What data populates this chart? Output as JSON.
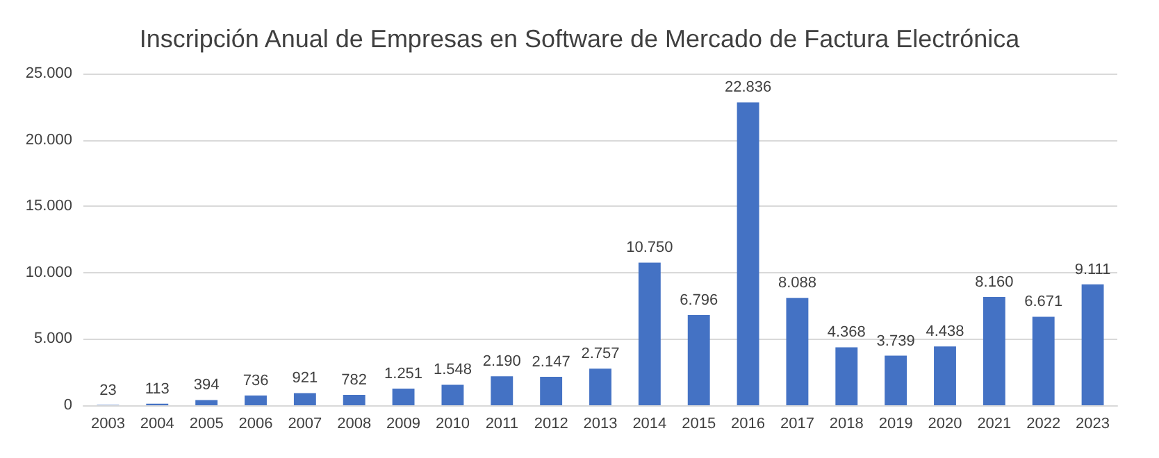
{
  "chart_data": {
    "type": "bar",
    "title": "Inscripción Anual de Empresas en Software de Mercado de Factura Electrónica",
    "categories": [
      "2003",
      "2004",
      "2005",
      "2006",
      "2007",
      "2008",
      "2009",
      "2010",
      "2011",
      "2012",
      "2013",
      "2014",
      "2015",
      "2016",
      "2017",
      "2018",
      "2019",
      "2020",
      "2021",
      "2022",
      "2023"
    ],
    "values": [
      23,
      113,
      394,
      736,
      921,
      782,
      1251,
      1548,
      2190,
      2147,
      2757,
      10750,
      6796,
      22836,
      8088,
      4368,
      3739,
      4438,
      8160,
      6671,
      9111
    ],
    "value_labels": [
      "23",
      "113",
      "394",
      "736",
      "921",
      "782",
      "1.251",
      "1.548",
      "2.190",
      "2.147",
      "2.757",
      "10.750",
      "6.796",
      "22.836",
      "8.088",
      "4.368",
      "3.739",
      "4.438",
      "8.160",
      "6.671",
      "9.111"
    ],
    "color": "#4472c4",
    "ylim": [
      0,
      25000
    ],
    "yticks": [
      0,
      {
        "value": 5000,
        "label": "5.000"
      },
      {
        "value": 10000,
        "label": "10.000"
      },
      {
        "value": 15000,
        "label": "15.000"
      },
      {
        "value": 20000,
        "label": "20.000"
      },
      {
        "value": 25000,
        "label": "25.000"
      }
    ],
    "grid": "y"
  }
}
